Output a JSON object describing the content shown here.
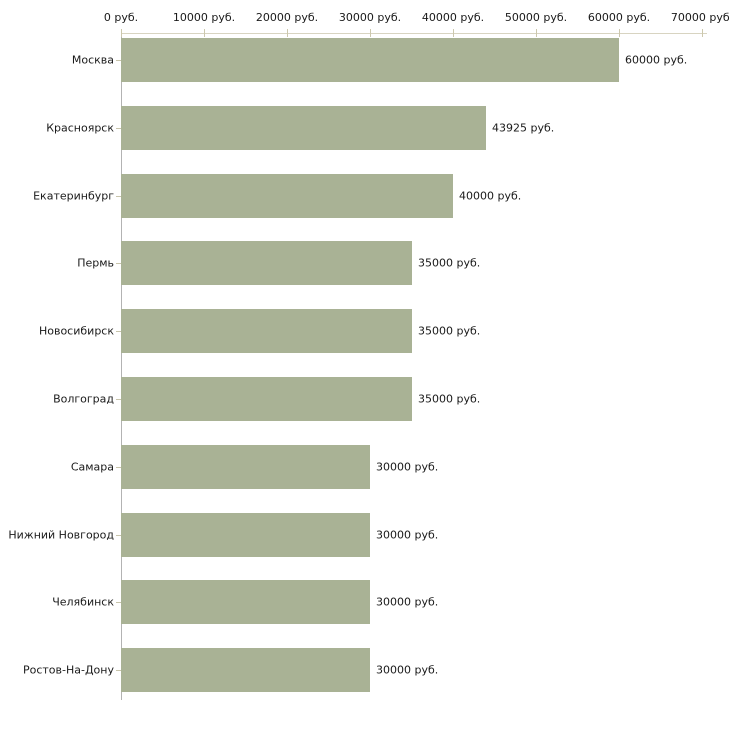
{
  "chart_data": {
    "type": "bar",
    "orientation": "horizontal",
    "title": "",
    "xlabel": "",
    "ylabel": "",
    "unit": "руб.",
    "xlim": [
      0,
      70000
    ],
    "grid": false,
    "legend": false,
    "categories": [
      "Москва",
      "Красноярск",
      "Екатеринбург",
      "Пермь",
      "Новосибирск",
      "Волгоград",
      "Самара",
      "Нижний Новгород",
      "Челябинск",
      "Ростов-На-Дону"
    ],
    "values": [
      60000,
      43925,
      40000,
      35000,
      35000,
      35000,
      30000,
      30000,
      30000,
      30000
    ],
    "bar_labels": [
      "60000 руб.",
      "43925 руб.",
      "40000 руб.",
      "35000 руб.",
      "35000 руб.",
      "35000 руб.",
      "30000 руб.",
      "30000 руб.",
      "30000 руб.",
      "30000 руб."
    ],
    "x_ticks": [
      {
        "value": 0,
        "label": "0 руб."
      },
      {
        "value": 10000,
        "label": "10000 руб."
      },
      {
        "value": 20000,
        "label": "20000 руб."
      },
      {
        "value": 30000,
        "label": "30000 руб."
      },
      {
        "value": 40000,
        "label": "40000 руб."
      },
      {
        "value": 50000,
        "label": "50000 руб."
      },
      {
        "value": 60000,
        "label": "60000 руб."
      },
      {
        "value": 70000,
        "label": "70000 руб."
      }
    ],
    "colors": {
      "bar_fill": "#a9b295",
      "x_axis_line": "#d8d4c1",
      "x_tick_mark": "#ccc8ad",
      "y_axis_line": "#b3b3b3",
      "category_tick": "#c8c4ab",
      "text": "#1a1a1a",
      "background": "#ffffff"
    }
  }
}
